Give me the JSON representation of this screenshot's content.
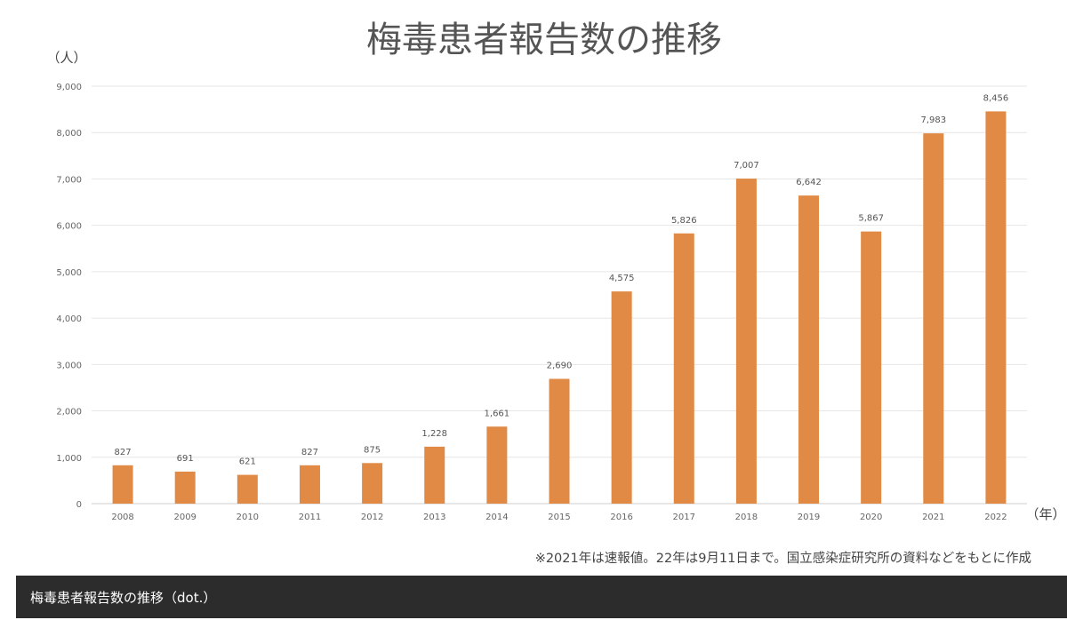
{
  "chart_data": {
    "type": "bar",
    "title": "梅毒患者報告数の推移",
    "ylabel": "（人）",
    "xlabel": "（年）",
    "categories": [
      "2008",
      "2009",
      "2010",
      "2011",
      "2012",
      "2013",
      "2014",
      "2015",
      "2016",
      "2017",
      "2018",
      "2019",
      "2020",
      "2021",
      "2022"
    ],
    "values": [
      827,
      691,
      621,
      827,
      875,
      1228,
      1661,
      2690,
      4575,
      5826,
      7007,
      6642,
      5867,
      7983,
      8456
    ],
    "value_labels": [
      "827",
      "691",
      "621",
      "827",
      "875",
      "1,228",
      "1,661",
      "2,690",
      "4,575",
      "5,826",
      "7,007",
      "6,642",
      "5,867",
      "7,983",
      "8,456"
    ],
    "yticks": [
      0,
      1000,
      2000,
      3000,
      4000,
      5000,
      6000,
      7000,
      8000,
      9000
    ],
    "ytick_labels": [
      "0",
      "1,000",
      "2,000",
      "3,000",
      "4,000",
      "5,000",
      "6,000",
      "7,000",
      "8,000",
      "9,000"
    ],
    "ylim": [
      0,
      9000
    ],
    "grid": true,
    "bar_color": "#e08a45",
    "note": "※2021年は速報値。22年は9月11日まで。国立感染症研究所の資料などをもとに作成"
  },
  "caption": "梅毒患者報告数の推移（dot.）"
}
